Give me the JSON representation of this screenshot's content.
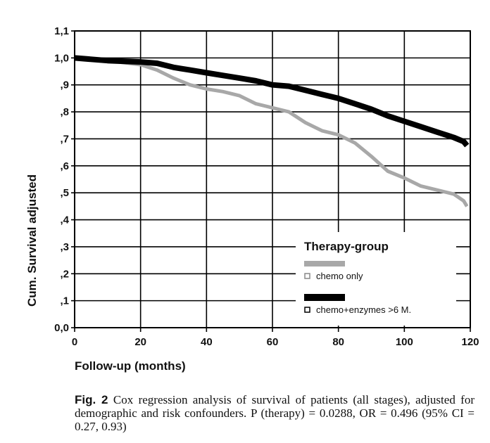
{
  "chart_data": {
    "type": "line",
    "ylabel": "Cum. Survival adjusted",
    "xlabel": "Follow-up (months)",
    "xlim": [
      0,
      120
    ],
    "ylim": [
      0,
      1.1
    ],
    "x_ticks": [
      "0",
      "20",
      "40",
      "60",
      "80",
      "100",
      "120"
    ],
    "y_ticks": [
      "0,0",
      ",1",
      ",2",
      ",3",
      ",4",
      ",5",
      ",6",
      ",7",
      ",8",
      ",9",
      "1,0",
      "1,1"
    ],
    "grid": true,
    "legend_title": "Therapy-group",
    "legend_placement": "bottom-right",
    "series": [
      {
        "name": "chemo only",
        "color": "#a8a8a8",
        "x": [
          0,
          10,
          20,
          25,
          30,
          35,
          40,
          45,
          50,
          55,
          60,
          65,
          70,
          75,
          80,
          85,
          90,
          95,
          100,
          105,
          110,
          115,
          118,
          119
        ],
        "y": [
          1.0,
          0.99,
          0.975,
          0.955,
          0.925,
          0.9,
          0.885,
          0.875,
          0.86,
          0.83,
          0.815,
          0.8,
          0.76,
          0.73,
          0.715,
          0.685,
          0.635,
          0.58,
          0.555,
          0.525,
          0.51,
          0.495,
          0.47,
          0.45
        ]
      },
      {
        "name": "chemo+enzymes >6 M.",
        "color": "#000000",
        "x": [
          0,
          10,
          20,
          25,
          30,
          35,
          40,
          45,
          50,
          55,
          60,
          65,
          70,
          75,
          80,
          85,
          90,
          95,
          100,
          105,
          110,
          115,
          118,
          119
        ],
        "y": [
          1.0,
          0.99,
          0.985,
          0.98,
          0.965,
          0.955,
          0.945,
          0.935,
          0.925,
          0.915,
          0.9,
          0.895,
          0.88,
          0.865,
          0.85,
          0.83,
          0.81,
          0.785,
          0.765,
          0.745,
          0.725,
          0.705,
          0.69,
          0.675
        ]
      }
    ]
  },
  "caption": {
    "label": "Fig. 2",
    "text": "Cox regression analysis of survival of patients (all stages), adjusted for demographic and risk confounders. P (therapy) = 0.0288, OR = 0.496 (95% CI = 0.27, 0.93)"
  }
}
